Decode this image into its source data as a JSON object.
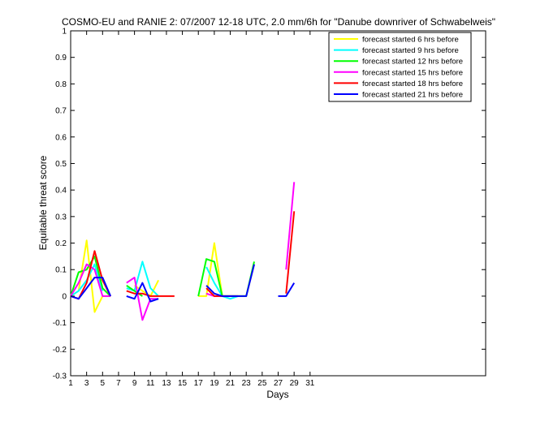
{
  "chart_data": {
    "type": "line",
    "title": "COSMO-EU and RANIE 2: 07/2007 12-18 UTC, 2.0 mm/6h for \"Danube downriver of Schwabelweis\"",
    "xlabel": "Days",
    "ylabel": "Equitable threat score",
    "xlim": [
      1,
      53
    ],
    "ylim": [
      -0.3,
      1
    ],
    "xticks": [
      1,
      3,
      5,
      7,
      9,
      11,
      13,
      15,
      17,
      19,
      21,
      23,
      25,
      27,
      29,
      31
    ],
    "yticks": [
      -0.3,
      -0.2,
      -0.1,
      0,
      0.1,
      0.2,
      0.3,
      0.4,
      0.5,
      0.6,
      0.7,
      0.8,
      0.9,
      1
    ],
    "ytick_labels": [
      "-0.3",
      "-0.2",
      "-0.1",
      "0",
      "0.1",
      "0.2",
      "0.3",
      "0.4",
      "0.5",
      "0.6",
      "0.7",
      "0.8",
      "0.9",
      "1"
    ],
    "grid": false,
    "legend_position": "top-right",
    "series": [
      {
        "name": "forecast started 6 hrs before",
        "color": "#ffff00",
        "x": [
          1,
          2,
          3,
          4,
          5,
          6,
          null,
          9,
          10,
          11,
          12,
          null,
          17,
          18,
          19,
          20,
          21,
          22,
          23,
          24,
          null,
          29
        ],
        "y": [
          0,
          0.02,
          0.21,
          -0.06,
          0,
          0,
          null,
          0.04,
          0.02,
          0,
          0.06,
          null,
          0,
          0,
          0.2,
          0,
          0,
          0,
          0,
          0.12,
          null,
          0.3
        ]
      },
      {
        "name": "forecast started 9 hrs before",
        "color": "#00ffff",
        "x": [
          1,
          2,
          3,
          4,
          5,
          null,
          8,
          9,
          10,
          11,
          12,
          null,
          18,
          19,
          20,
          21,
          22,
          null,
          29
        ],
        "y": [
          0,
          0.02,
          0.06,
          0.12,
          0.02,
          null,
          0.03,
          0.02,
          0.13,
          0.03,
          0,
          null,
          0.11,
          0.05,
          0,
          -0.01,
          0,
          null,
          0.35
        ]
      },
      {
        "name": "forecast started 12 hrs before",
        "color": "#00ff00",
        "x": [
          1,
          2,
          3,
          4,
          5,
          6,
          null,
          8,
          9,
          10,
          null,
          17,
          18,
          19,
          20,
          21,
          22,
          23,
          24,
          null,
          29
        ],
        "y": [
          0,
          0.09,
          0.1,
          0.15,
          0.03,
          0,
          null,
          0.04,
          0.02,
          0,
          null,
          0,
          0.14,
          0.13,
          0,
          0,
          0,
          0,
          0.13,
          null,
          0.33
        ]
      },
      {
        "name": "forecast started 15 hrs before",
        "color": "#ff00ff",
        "x": [
          1,
          2,
          3,
          4,
          5,
          6,
          null,
          8,
          9,
          10,
          11,
          12,
          null,
          18,
          19,
          20,
          null,
          24,
          null,
          28,
          29
        ],
        "y": [
          0,
          0.05,
          0.12,
          0.1,
          0,
          0,
          null,
          0.05,
          0.07,
          -0.09,
          -0.01,
          -0.01,
          null,
          0.01,
          0,
          0,
          null,
          0.08,
          null,
          0.1,
          0.43
        ]
      },
      {
        "name": "forecast started 18 hrs before",
        "color": "#ff0000",
        "x": [
          1,
          2,
          3,
          4,
          5,
          6,
          null,
          8,
          9,
          10,
          11,
          12,
          13,
          14,
          null,
          18,
          19,
          20,
          21,
          22,
          null,
          28,
          29
        ],
        "y": [
          0,
          -0.01,
          0.05,
          0.17,
          0.06,
          0,
          null,
          0.02,
          0.01,
          0.01,
          0,
          0,
          0,
          0,
          null,
          0.03,
          0,
          0,
          0,
          0,
          null,
          0.01,
          0.32
        ]
      },
      {
        "name": "forecast started 21 hrs before",
        "color": "#0000ff",
        "x": [
          1,
          2,
          3,
          4,
          5,
          6,
          null,
          8,
          9,
          10,
          11,
          12,
          null,
          18,
          19,
          20,
          21,
          22,
          23,
          24,
          null,
          27,
          28,
          29
        ],
        "y": [
          0,
          -0.01,
          0.03,
          0.07,
          0.07,
          0,
          null,
          0,
          -0.01,
          0.05,
          -0.02,
          -0.01,
          null,
          0.04,
          0.01,
          0,
          0,
          0,
          0,
          0.12,
          null,
          0,
          0,
          0.05
        ]
      }
    ]
  }
}
